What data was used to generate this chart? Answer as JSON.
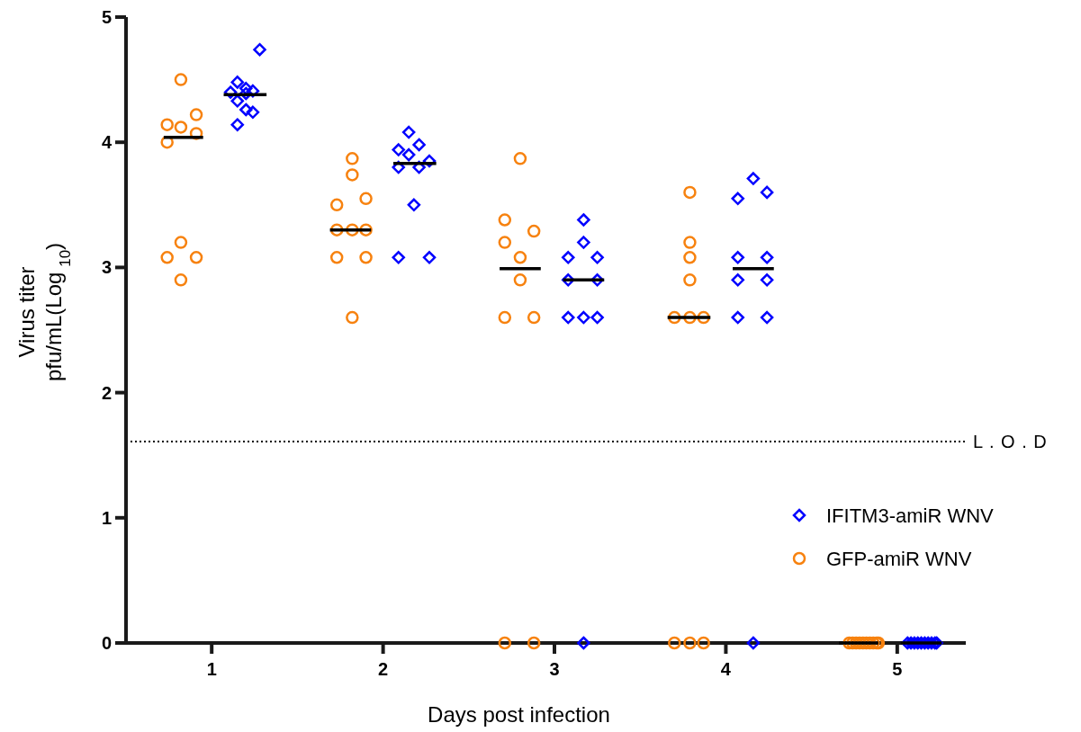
{
  "chart_data": {
    "type": "scatter",
    "xlabel": "Days post infection",
    "ylabel": "Virus titer\npfu/mL(Log$_{10}$)",
    "xlim": [
      0.5,
      5.4
    ],
    "xticks": [
      1,
      2,
      3,
      4,
      5
    ],
    "ylim": [
      0,
      5
    ],
    "yticks": [
      0,
      1,
      2,
      3,
      4,
      5
    ],
    "grid": false,
    "legend": "right",
    "ref_lines": [
      {
        "axis": "y",
        "value": 1.61,
        "label": "L . O . D",
        "color": "#000000",
        "line_style": "dotted"
      }
    ],
    "series": [
      {
        "name": "IFITM3-amiR WNV",
        "color": "#0000ff",
        "marker": "diamond",
        "x": [
          1.28,
          1.15,
          1.11,
          1.24,
          1.2,
          1.15,
          1.2,
          1.24,
          1.15,
          1.2,
          2.15,
          2.21,
          2.09,
          2.15,
          2.27,
          2.09,
          2.21,
          2.18,
          2.09,
          2.27,
          3.17,
          3.17,
          3.08,
          3.25,
          3.08,
          3.25,
          3.08,
          3.17,
          3.25,
          3.17,
          4.16,
          4.07,
          4.24,
          4.07,
          4.24,
          4.07,
          4.24,
          4.07,
          4.24,
          4.16,
          5.06,
          5.08,
          5.1,
          5.12,
          5.14,
          5.16,
          5.18,
          5.2,
          5.22,
          5.23
        ],
        "values": [
          4.74,
          4.48,
          4.4,
          4.41,
          4.43,
          4.33,
          4.26,
          4.24,
          4.14,
          4.39,
          4.08,
          3.98,
          3.94,
          3.9,
          3.85,
          3.8,
          3.8,
          3.5,
          3.08,
          3.08,
          3.38,
          3.2,
          3.08,
          3.08,
          2.9,
          2.9,
          2.6,
          2.6,
          2.6,
          0,
          3.71,
          3.55,
          3.6,
          3.08,
          3.08,
          2.9,
          2.9,
          2.6,
          2.6,
          0,
          0,
          0,
          0,
          0,
          0,
          0,
          0,
          0,
          0,
          0
        ]
      },
      {
        "name": "GFP-amiR WNV",
        "color": "#f7820f",
        "marker": "circle",
        "x": [
          0.82,
          0.91,
          0.74,
          0.82,
          0.91,
          0.74,
          0.82,
          0.74,
          0.91,
          0.82,
          1.82,
          1.82,
          1.9,
          1.73,
          1.73,
          1.82,
          1.9,
          1.73,
          1.9,
          1.82,
          2.8,
          2.71,
          2.88,
          2.71,
          2.8,
          2.8,
          2.71,
          2.88,
          2.71,
          2.88,
          3.79,
          3.79,
          3.79,
          3.79,
          3.7,
          3.79,
          3.87,
          3.7,
          3.79,
          3.87,
          4.72,
          4.74,
          4.76,
          4.78,
          4.8,
          4.82,
          4.84,
          4.86,
          4.88,
          4.89
        ],
        "values": [
          4.5,
          4.22,
          4.14,
          4.12,
          4.07,
          4.0,
          3.2,
          3.08,
          3.08,
          2.9,
          3.87,
          3.74,
          3.55,
          3.5,
          3.3,
          3.3,
          3.3,
          3.08,
          3.08,
          2.6,
          3.87,
          3.38,
          3.29,
          3.2,
          3.08,
          2.9,
          2.6,
          2.6,
          0,
          0,
          3.6,
          3.2,
          3.08,
          2.9,
          2.6,
          2.6,
          2.6,
          0,
          0,
          0,
          0,
          0,
          0,
          0,
          0,
          0,
          0,
          0,
          0,
          0
        ]
      },
      {
        "type": "line",
        "color": "#000000",
        "marker": "none",
        "x": [
          0.72,
          0.95
        ],
        "values": [
          4.04,
          4.04
        ]
      },
      {
        "type": "line",
        "color": "#000000",
        "marker": "none",
        "x": [
          1.07,
          1.32
        ],
        "values": [
          4.38,
          4.38
        ]
      },
      {
        "type": "line",
        "color": "#000000",
        "marker": "none",
        "x": [
          1.69,
          1.93
        ],
        "values": [
          3.3,
          3.3
        ]
      },
      {
        "type": "line",
        "color": "#000000",
        "marker": "none",
        "x": [
          2.06,
          2.31
        ],
        "values": [
          3.83,
          3.83
        ]
      },
      {
        "type": "line",
        "color": "#000000",
        "marker": "none",
        "x": [
          2.68,
          2.92
        ],
        "values": [
          2.99,
          2.99
        ]
      },
      {
        "type": "line",
        "color": "#000000",
        "marker": "none",
        "x": [
          3.05,
          3.29
        ],
        "values": [
          2.9,
          2.9
        ]
      },
      {
        "type": "line",
        "color": "#000000",
        "marker": "none",
        "x": [
          3.66,
          3.91
        ],
        "values": [
          2.6,
          2.6
        ]
      },
      {
        "type": "line",
        "color": "#000000",
        "marker": "none",
        "x": [
          4.04,
          4.28
        ],
        "values": [
          2.99,
          2.99
        ]
      },
      {
        "type": "line",
        "color": "#000000",
        "marker": "none",
        "x": [
          4.66,
          4.89
        ],
        "values": [
          0,
          0
        ]
      },
      {
        "type": "line",
        "color": "#000000",
        "marker": "none",
        "x": [
          5.02,
          5.26
        ],
        "values": [
          0,
          0
        ]
      }
    ]
  }
}
